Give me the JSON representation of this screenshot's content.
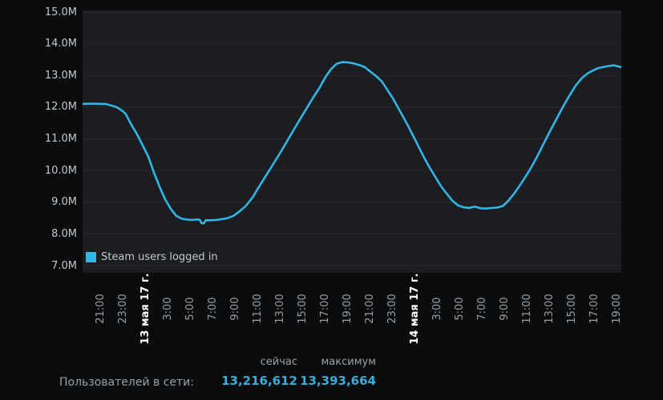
{
  "chart_data": {
    "type": "line",
    "title": "",
    "legend_label": "Steam users logged in",
    "legend_position": "bottom-left-inside",
    "grid": "horizontal-only",
    "colors": {
      "line": "#31b6e7",
      "plot_background": "#1b1d20",
      "page_background": "#0a0b0c",
      "gridline": "#27292c",
      "y_label": "#c3c8cc",
      "x_time_label": "#9aa1a6",
      "x_date_label": "#ffffff"
    },
    "y_axis": {
      "min_millions": 7.0,
      "max_millions": 15.0,
      "tick_step_millions": 1.0,
      "tick_labels": [
        "15.0M",
        "14.0M",
        "13.0M",
        "12.0M",
        "11.0M",
        "10.0M",
        "9.0M",
        "8.0M",
        "7.0M"
      ]
    },
    "x_axis": {
      "tick_interval_hours": 2,
      "tick_labels": [
        "21:00",
        "23:00",
        "13 мая 17 г.",
        "3:00",
        "5:00",
        "7:00",
        "9:00",
        "11:00",
        "13:00",
        "15:00",
        "17:00",
        "19:00",
        "21:00",
        "23:00",
        "14 мая 17 г.",
        "3:00",
        "5:00",
        "7:00",
        "9:00",
        "11:00",
        "13:00",
        "15:00",
        "17:00",
        "19:00"
      ],
      "date_label_indices": [
        2,
        14
      ],
      "domain_hours": [
        -1.64,
        46.36
      ]
    },
    "series": [
      {
        "name": "Steam users logged in",
        "points_hours_vs_millions": [
          [
            -1.64,
            12.1
          ],
          [
            -0.8,
            12.11
          ],
          [
            0,
            12.1
          ],
          [
            0.4,
            12.1
          ],
          [
            0.9,
            12.05
          ],
          [
            1.4,
            12.0
          ],
          [
            1.9,
            11.88
          ],
          [
            2.2,
            11.78
          ],
          [
            2.7,
            11.45
          ],
          [
            3.2,
            11.15
          ],
          [
            3.7,
            10.8
          ],
          [
            4.2,
            10.45
          ],
          [
            4.7,
            9.95
          ],
          [
            5.2,
            9.5
          ],
          [
            5.7,
            9.1
          ],
          [
            6.2,
            8.8
          ],
          [
            6.7,
            8.57
          ],
          [
            7.2,
            8.48
          ],
          [
            7.7,
            8.45
          ],
          [
            8.2,
            8.44
          ],
          [
            8.6,
            8.46
          ],
          [
            8.8,
            8.44
          ],
          [
            8.95,
            8.34
          ],
          [
            9.15,
            8.33
          ],
          [
            9.35,
            8.43
          ],
          [
            9.8,
            8.43
          ],
          [
            10.3,
            8.44
          ],
          [
            10.8,
            8.47
          ],
          [
            11.3,
            8.5
          ],
          [
            11.8,
            8.57
          ],
          [
            12.3,
            8.7
          ],
          [
            12.9,
            8.88
          ],
          [
            13.5,
            9.15
          ],
          [
            14.1,
            9.5
          ],
          [
            14.7,
            9.84
          ],
          [
            15.3,
            10.18
          ],
          [
            15.9,
            10.52
          ],
          [
            16.5,
            10.88
          ],
          [
            17.1,
            11.24
          ],
          [
            17.7,
            11.6
          ],
          [
            18.3,
            11.95
          ],
          [
            18.9,
            12.3
          ],
          [
            19.5,
            12.63
          ],
          [
            20.0,
            12.95
          ],
          [
            20.5,
            13.2
          ],
          [
            21.0,
            13.37
          ],
          [
            21.5,
            13.42
          ],
          [
            22.0,
            13.41
          ],
          [
            22.5,
            13.38
          ],
          [
            23.0,
            13.33
          ],
          [
            23.5,
            13.26
          ],
          [
            24.0,
            13.12
          ],
          [
            24.5,
            12.98
          ],
          [
            25.0,
            12.82
          ],
          [
            25.5,
            12.55
          ],
          [
            26.0,
            12.28
          ],
          [
            26.8,
            11.77
          ],
          [
            27.3,
            11.45
          ],
          [
            27.8,
            11.1
          ],
          [
            28.3,
            10.75
          ],
          [
            28.8,
            10.4
          ],
          [
            29.3,
            10.08
          ],
          [
            29.8,
            9.79
          ],
          [
            30.3,
            9.5
          ],
          [
            30.8,
            9.27
          ],
          [
            31.3,
            9.05
          ],
          [
            31.8,
            8.9
          ],
          [
            32.3,
            8.84
          ],
          [
            32.8,
            8.82
          ],
          [
            33.3,
            8.86
          ],
          [
            33.8,
            8.81
          ],
          [
            34.3,
            8.8
          ],
          [
            34.8,
            8.82
          ],
          [
            35.3,
            8.83
          ],
          [
            35.8,
            8.88
          ],
          [
            36.3,
            9.05
          ],
          [
            36.8,
            9.27
          ],
          [
            37.3,
            9.52
          ],
          [
            37.8,
            9.79
          ],
          [
            38.3,
            10.08
          ],
          [
            38.8,
            10.4
          ],
          [
            39.3,
            10.75
          ],
          [
            39.8,
            11.1
          ],
          [
            40.3,
            11.44
          ],
          [
            40.8,
            11.77
          ],
          [
            41.3,
            12.1
          ],
          [
            41.8,
            12.4
          ],
          [
            42.3,
            12.68
          ],
          [
            42.8,
            12.9
          ],
          [
            43.3,
            13.05
          ],
          [
            43.8,
            13.15
          ],
          [
            44.3,
            13.23
          ],
          [
            44.8,
            13.27
          ],
          [
            45.3,
            13.3
          ],
          [
            45.7,
            13.32
          ],
          [
            46.0,
            13.29
          ],
          [
            46.36,
            13.26
          ]
        ]
      }
    ]
  },
  "stats": {
    "now_header": "сейчас",
    "max_header": "максимум",
    "row_label": "Пользователей в сети:",
    "now_value": "13,216,612",
    "max_value": "13,393,664",
    "value_color": "#37aede"
  }
}
